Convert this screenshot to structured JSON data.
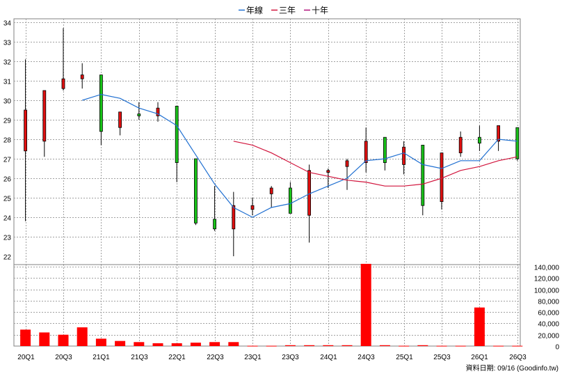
{
  "chart_data": {
    "type": "candlestick+bar",
    "x_categories": [
      "20Q1",
      "20Q2",
      "20Q3",
      "20Q4",
      "21Q1",
      "21Q2",
      "21Q3",
      "21Q4",
      "22Q1",
      "22Q2",
      "22Q3",
      "22Q4",
      "23Q1",
      "23Q2",
      "23Q3",
      "23Q4",
      "24Q1",
      "24Q2",
      "24Q3",
      "24Q4",
      "25Q1",
      "25Q2",
      "25Q3",
      "25Q4",
      "26Q1",
      "26Q2",
      "26Q3"
    ],
    "x_tick_labels": [
      "20Q1",
      "20Q3",
      "21Q1",
      "21Q3",
      "22Q1",
      "22Q3",
      "23Q1",
      "23Q3",
      "24Q1",
      "24Q3",
      "25Q1",
      "25Q3",
      "26Q1",
      "26Q3"
    ],
    "price_axis": {
      "ylim": [
        22,
        34
      ],
      "ticks": [
        22,
        23,
        24,
        25,
        26,
        27,
        28,
        29,
        30,
        31,
        32,
        33,
        34
      ],
      "side": "left"
    },
    "volume_axis": {
      "ylim": [
        0,
        140000
      ],
      "ticks": [
        0,
        20000,
        40000,
        60000,
        80000,
        100000,
        120000,
        140000
      ],
      "tick_labels": [
        "0",
        "20,000",
        "40,000",
        "60,000",
        "80,000",
        "100,000",
        "120,000",
        "140,000"
      ],
      "side": "right"
    },
    "grid": true,
    "legend": {
      "position": "top-center",
      "items": [
        {
          "label": "年線",
          "color": "#1f6fd1"
        },
        {
          "label": "三年",
          "color": "#d1143c"
        },
        {
          "label": "十年",
          "color": "#b0107a"
        }
      ]
    },
    "candles": [
      {
        "x": "20Q1",
        "open": 27.4,
        "high": 32.1,
        "low": 23.8,
        "close": 29.5
      },
      {
        "x": "20Q2",
        "open": 27.9,
        "high": 30.5,
        "low": 27.1,
        "close": 30.5
      },
      {
        "x": "20Q3",
        "open": 30.6,
        "high": 33.7,
        "low": 30.5,
        "close": 31.1
      },
      {
        "x": "20Q4",
        "open": 31.1,
        "high": 31.9,
        "low": 30.6,
        "close": 31.3
      },
      {
        "x": "21Q1",
        "open": 31.3,
        "high": 31.3,
        "low": 27.7,
        "close": 28.4
      },
      {
        "x": "21Q2",
        "open": 28.6,
        "high": 29.4,
        "low": 28.2,
        "close": 29.4
      },
      {
        "x": "21Q3",
        "open": 29.3,
        "high": 29.9,
        "low": 29.0,
        "close": 29.2
      },
      {
        "x": "21Q4",
        "open": 29.2,
        "high": 29.9,
        "low": 28.9,
        "close": 29.6
      },
      {
        "x": "22Q1",
        "open": 29.7,
        "high": 29.7,
        "low": 25.8,
        "close": 26.8
      },
      {
        "x": "22Q2",
        "open": 27.0,
        "high": 27.0,
        "low": 23.6,
        "close": 23.7
      },
      {
        "x": "22Q3",
        "open": 23.9,
        "high": 25.6,
        "low": 23.3,
        "close": 23.4
      },
      {
        "x": "22Q4",
        "open": 23.4,
        "high": 25.3,
        "low": 22.0,
        "close": 24.6
      },
      {
        "x": "23Q1",
        "open": 24.4,
        "high": 25.0,
        "low": 24.1,
        "close": 24.6
      },
      {
        "x": "23Q2",
        "open": 25.2,
        "high": 25.6,
        "low": 24.5,
        "close": 25.5
      },
      {
        "x": "23Q3",
        "open": 25.5,
        "high": 25.8,
        "low": 24.2,
        "close": 24.2
      },
      {
        "x": "23Q4",
        "open": 24.1,
        "high": 26.7,
        "low": 22.7,
        "close": 26.4
      },
      {
        "x": "24Q1",
        "open": 26.3,
        "high": 26.5,
        "low": 25.5,
        "close": 26.4
      },
      {
        "x": "24Q2",
        "open": 26.6,
        "high": 27.0,
        "low": 25.4,
        "close": 26.9
      },
      {
        "x": "24Q3",
        "open": 26.8,
        "high": 28.6,
        "low": 26.3,
        "close": 27.9
      },
      {
        "x": "24Q4",
        "open": 28.1,
        "high": 28.1,
        "low": 26.4,
        "close": 26.8
      },
      {
        "x": "25Q1",
        "open": 26.7,
        "high": 27.9,
        "low": 26.2,
        "close": 27.6
      },
      {
        "x": "25Q2",
        "open": 27.7,
        "high": 27.7,
        "low": 24.1,
        "close": 24.6
      },
      {
        "x": "25Q3",
        "open": 24.8,
        "high": 27.2,
        "low": 24.4,
        "close": 27.3
      },
      {
        "x": "25Q4",
        "open": 27.3,
        "high": 28.4,
        "low": 27.1,
        "close": 28.1
      },
      {
        "x": "26Q1",
        "open": 28.1,
        "high": 28.7,
        "low": 27.4,
        "close": 27.8
      },
      {
        "x": "26Q2",
        "open": 27.9,
        "high": 28.7,
        "low": 27.4,
        "close": 28.7
      },
      {
        "x": "26Q3",
        "open": 28.6,
        "high": 28.6,
        "low": 26.9,
        "close": 27.0
      }
    ],
    "series": [
      {
        "name": "年線",
        "x": [
          "20Q4",
          "21Q1",
          "21Q2",
          "21Q3",
          "21Q4",
          "22Q1",
          "22Q2",
          "22Q3",
          "22Q4",
          "23Q1",
          "23Q2",
          "23Q3",
          "23Q4",
          "24Q1",
          "24Q2",
          "24Q3",
          "24Q4",
          "25Q1",
          "25Q2",
          "25Q3",
          "25Q4",
          "26Q1",
          "26Q2",
          "26Q3"
        ],
        "values": [
          30.0,
          30.3,
          30.1,
          29.6,
          29.3,
          28.7,
          27.2,
          25.7,
          24.5,
          24.0,
          24.5,
          24.7,
          25.2,
          25.6,
          26.0,
          26.9,
          27.0,
          27.3,
          26.7,
          26.5,
          26.9,
          26.9,
          28.0,
          27.9
        ]
      },
      {
        "name": "三年",
        "x": [
          "22Q4",
          "23Q1",
          "23Q2",
          "23Q3",
          "23Q4",
          "24Q1",
          "24Q2",
          "24Q3",
          "24Q4",
          "25Q1",
          "25Q2",
          "25Q3",
          "25Q4",
          "26Q1",
          "26Q2",
          "26Q3"
        ],
        "values": [
          27.9,
          27.7,
          27.3,
          26.8,
          26.3,
          26.1,
          25.9,
          25.8,
          25.6,
          25.6,
          25.7,
          26.0,
          26.4,
          26.6,
          26.9,
          27.1
        ]
      }
    ],
    "volume": {
      "x": [
        "20Q1",
        "20Q2",
        "20Q3",
        "20Q4",
        "21Q1",
        "21Q2",
        "21Q3",
        "21Q4",
        "22Q1",
        "22Q2",
        "22Q3",
        "22Q4",
        "23Q1",
        "23Q2",
        "23Q3",
        "23Q4",
        "24Q1",
        "24Q2",
        "24Q3",
        "24Q4",
        "25Q1",
        "25Q2",
        "25Q3",
        "25Q4",
        "26Q1",
        "26Q2",
        "26Q3"
      ],
      "values": [
        29000,
        24000,
        20000,
        33000,
        13000,
        9000,
        7000,
        5000,
        5000,
        6000,
        7000,
        7000,
        500,
        500,
        1500,
        1500,
        1500,
        1500,
        145000,
        1500,
        500,
        1500,
        500,
        500,
        68000,
        500,
        500
      ],
      "color": "#ff0000"
    },
    "source_note": "資料日期: 09/16 (Goodinfo.tw)"
  }
}
